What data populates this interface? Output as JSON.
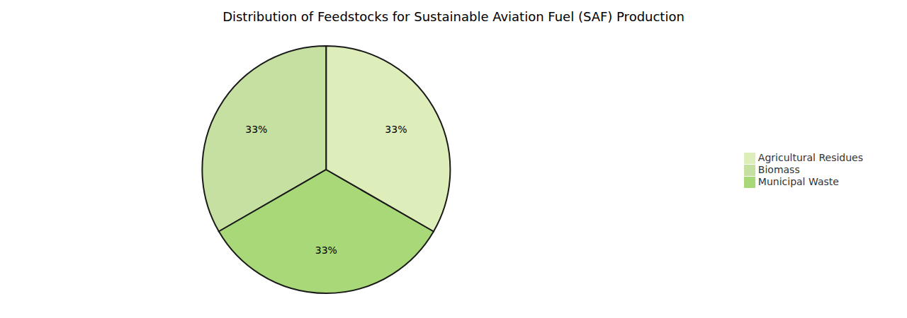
{
  "chart_data": {
    "type": "pie",
    "title": "Distribution of Feedstocks for Sustainable Aviation Fuel (SAF) Production",
    "categories": [
      "Biomass",
      "Municipal Waste",
      "Agricultural Residues"
    ],
    "values": [
      33,
      33,
      33
    ],
    "value_labels": [
      "33%",
      "33%",
      "33%"
    ],
    "colors": [
      "#c5e0a0",
      "#a8d878",
      "#ddeebb"
    ],
    "data_labels": true,
    "legend": "right"
  }
}
